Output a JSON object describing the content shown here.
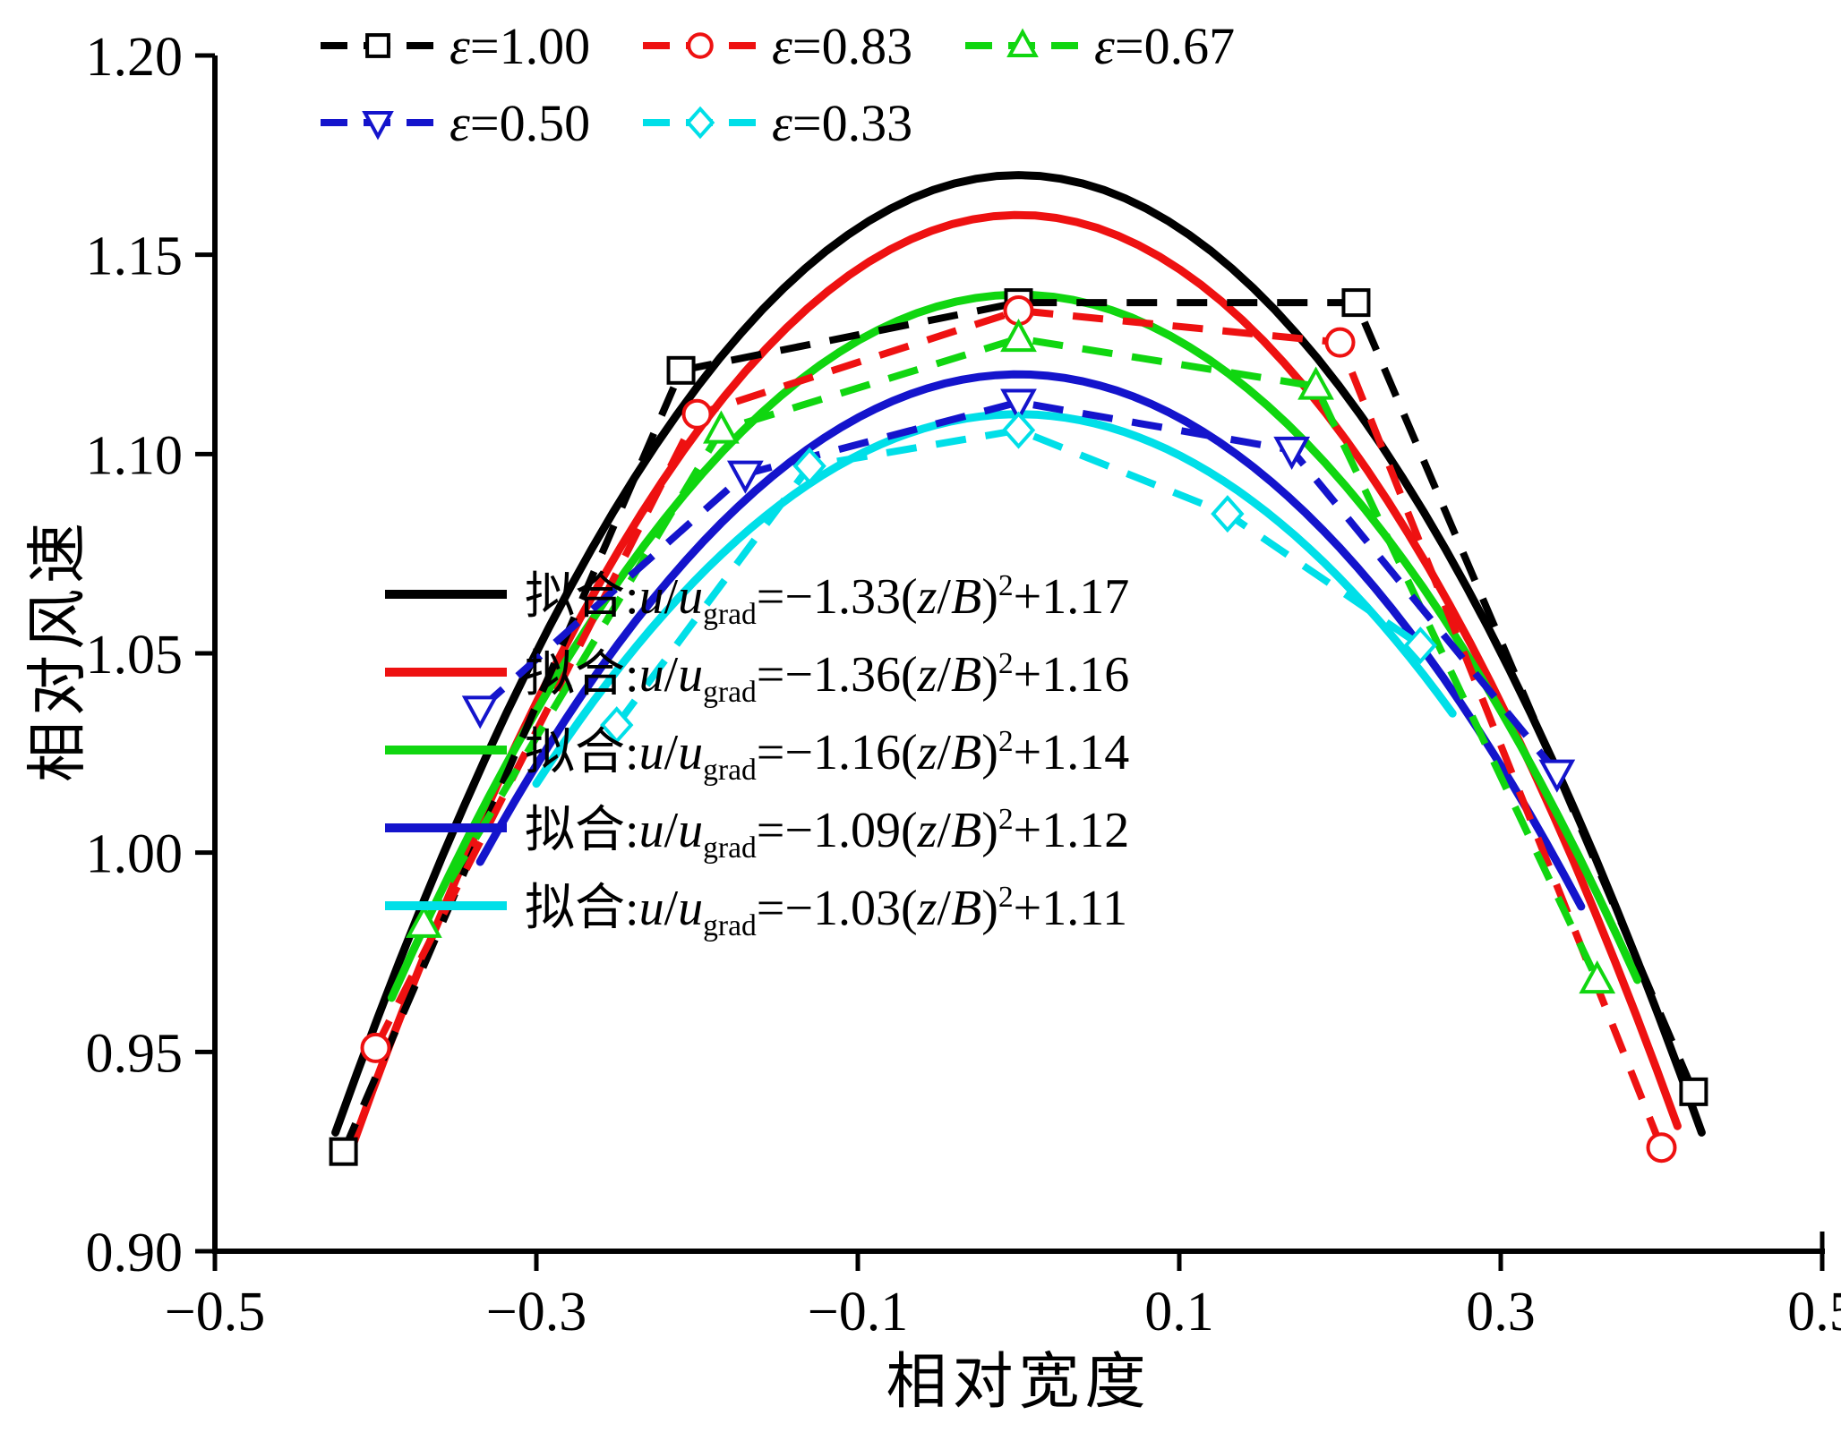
{
  "chart_data": {
    "type": "line",
    "title": "",
    "xlabel": "相对宽度",
    "ylabel": "相对风速",
    "xlim": [
      -0.5,
      0.5
    ],
    "ylim": [
      0.9,
      1.2
    ],
    "grid": false,
    "legend_position": "top-inside and center-inside",
    "xticks": [
      -0.5,
      -0.3,
      -0.1,
      0.1,
      0.3,
      0.5
    ],
    "xtick_labels": [
      "−0.5",
      "−0.3",
      "−0.1",
      "0.1",
      "0.3",
      "0.5"
    ],
    "yticks": [
      0.9,
      0.95,
      1.0,
      1.05,
      1.1,
      1.15,
      1.2
    ],
    "ytick_labels": [
      "0.90",
      "0.95",
      "1.00",
      "1.05",
      "1.10",
      "1.15",
      "1.20"
    ],
    "data_series": [
      {
        "name": "epsilon-1.00",
        "color": "#000000",
        "marker": "square",
        "linestyle": "dashed",
        "label": [
          {
            "t": "ε",
            "i": 1
          },
          {
            "t": "=1.00"
          }
        ],
        "x": [
          -0.42,
          -0.21,
          0,
          0.21,
          0.42
        ],
        "y": [
          0.925,
          1.121,
          1.138,
          1.138,
          0.94
        ]
      },
      {
        "name": "epsilon-0.83",
        "color": "#ee1111",
        "marker": "circle",
        "linestyle": "dashed",
        "label": [
          {
            "t": "ε",
            "i": 1
          },
          {
            "t": "=0.83"
          }
        ],
        "x": [
          -0.4,
          -0.2,
          0,
          0.2,
          0.4
        ],
        "y": [
          0.951,
          1.11,
          1.136,
          1.128,
          0.926
        ]
      },
      {
        "name": "epsilon-0.67",
        "color": "#10d610",
        "marker": "triangle-up",
        "linestyle": "dashed",
        "label": [
          {
            "t": "ε",
            "i": 1
          },
          {
            "t": "=0.67"
          }
        ],
        "x": [
          -0.37,
          -0.185,
          0,
          0.185,
          0.36
        ],
        "y": [
          0.982,
          1.106,
          1.129,
          1.117,
          0.968
        ]
      },
      {
        "name": "epsilon-0.50",
        "color": "#1414cc",
        "marker": "triangle-down",
        "linestyle": "dashed",
        "label": [
          {
            "t": "ε",
            "i": 1
          },
          {
            "t": "=0.50"
          }
        ],
        "x": [
          -0.335,
          -0.17,
          0,
          0.17,
          0.335
        ],
        "y": [
          1.036,
          1.095,
          1.113,
          1.101,
          1.02
        ]
      },
      {
        "name": "epsilon-0.33",
        "color": "#00dfe8",
        "marker": "diamond",
        "linestyle": "dashed",
        "label": [
          {
            "t": "ε",
            "i": 1
          },
          {
            "t": "=0.33"
          }
        ],
        "x": [
          -0.25,
          -0.13,
          0,
          0.13,
          0.25
        ],
        "y": [
          1.032,
          1.097,
          1.106,
          1.085,
          1.052
        ]
      }
    ],
    "fit_series": [
      {
        "name": "fit-1.00",
        "color": "#000000",
        "a": -1.33,
        "b": 1.17,
        "x_range": [
          -0.425,
          0.425
        ],
        "equation": [
          {
            "t": "拟合:"
          },
          {
            "t": "u",
            "i": 1
          },
          {
            "t": "/"
          },
          {
            "t": "u",
            "i": 1
          },
          {
            "t": "grad",
            "sb": 1
          },
          {
            "t": "=−1.33("
          },
          {
            "t": "z",
            "i": 1
          },
          {
            "t": "/"
          },
          {
            "t": "B",
            "i": 1
          },
          {
            "t": ")"
          },
          {
            "t": "2",
            "sp": 1
          },
          {
            "t": "+1.17"
          }
        ]
      },
      {
        "name": "fit-0.83",
        "color": "#ee1111",
        "a": -1.36,
        "b": 1.16,
        "x_range": [
          -0.415,
          0.41
        ],
        "equation": [
          {
            "t": "拟合:"
          },
          {
            "t": "u",
            "i": 1
          },
          {
            "t": "/"
          },
          {
            "t": "u",
            "i": 1
          },
          {
            "t": "grad",
            "sb": 1
          },
          {
            "t": "=−1.36("
          },
          {
            "t": "z",
            "i": 1
          },
          {
            "t": "/"
          },
          {
            "t": "B",
            "i": 1
          },
          {
            "t": ")"
          },
          {
            "t": "2",
            "sp": 1
          },
          {
            "t": "+1.16"
          }
        ]
      },
      {
        "name": "fit-0.67",
        "color": "#10d610",
        "a": -1.16,
        "b": 1.14,
        "x_range": [
          -0.39,
          0.385
        ],
        "equation": [
          {
            "t": "拟合:"
          },
          {
            "t": "u",
            "i": 1
          },
          {
            "t": "/"
          },
          {
            "t": "u",
            "i": 1
          },
          {
            "t": "grad",
            "sb": 1
          },
          {
            "t": "=−1.16("
          },
          {
            "t": "z",
            "i": 1
          },
          {
            "t": "/"
          },
          {
            "t": "B",
            "i": 1
          },
          {
            "t": ")"
          },
          {
            "t": "2",
            "sp": 1
          },
          {
            "t": "+1.14"
          }
        ]
      },
      {
        "name": "fit-0.50",
        "color": "#1414cc",
        "a": -1.09,
        "b": 1.12,
        "x_range": [
          -0.335,
          0.35
        ],
        "equation": [
          {
            "t": "拟合:"
          },
          {
            "t": "u",
            "i": 1
          },
          {
            "t": "/"
          },
          {
            "t": "u",
            "i": 1
          },
          {
            "t": "grad",
            "sb": 1
          },
          {
            "t": "=−1.09("
          },
          {
            "t": "z",
            "i": 1
          },
          {
            "t": "/"
          },
          {
            "t": "B",
            "i": 1
          },
          {
            "t": ")"
          },
          {
            "t": "2",
            "sp": 1
          },
          {
            "t": "+1.12"
          }
        ]
      },
      {
        "name": "fit-0.33",
        "color": "#00dfe8",
        "a": -1.03,
        "b": 1.11,
        "x_range": [
          -0.3,
          0.27
        ],
        "equation": [
          {
            "t": "拟合:"
          },
          {
            "t": "u",
            "i": 1
          },
          {
            "t": "/"
          },
          {
            "t": "u",
            "i": 1
          },
          {
            "t": "grad",
            "sb": 1
          },
          {
            "t": "=−1.03("
          },
          {
            "t": "z",
            "i": 1
          },
          {
            "t": "/"
          },
          {
            "t": "B",
            "i": 1
          },
          {
            "t": ")"
          },
          {
            "t": "2",
            "sp": 1
          },
          {
            "t": "+1.11"
          }
        ]
      }
    ]
  }
}
